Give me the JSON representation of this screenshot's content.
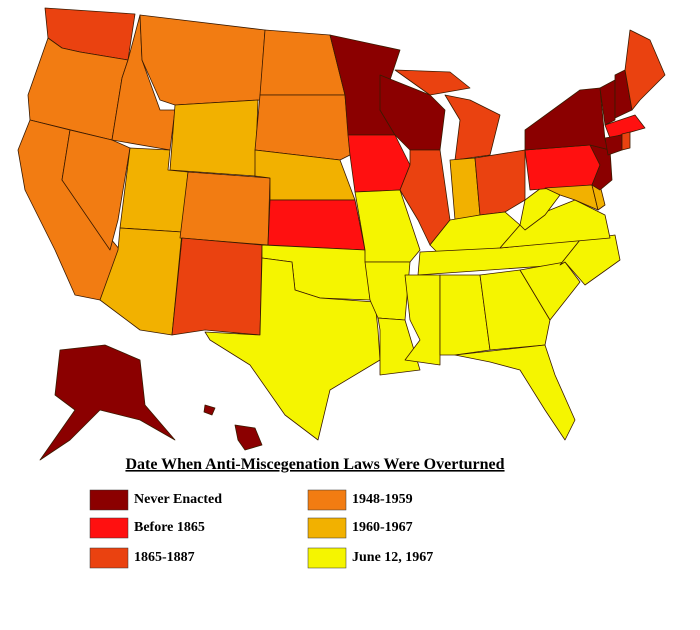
{
  "title": "Date When Anti-Miscegenation Laws Were Overturned",
  "legend": [
    {
      "label": "Never Enacted",
      "color": "#8b0000"
    },
    {
      "label": "Before 1865",
      "color": "#ff1010"
    },
    {
      "label": "1865-1887",
      "color": "#ea4210"
    },
    {
      "label": "1948-1959",
      "color": "#f27c12"
    },
    {
      "label": "1960-1967",
      "color": "#f2b100"
    },
    {
      "label": "June 12, 1967",
      "color": "#f5f500"
    }
  ]
}
